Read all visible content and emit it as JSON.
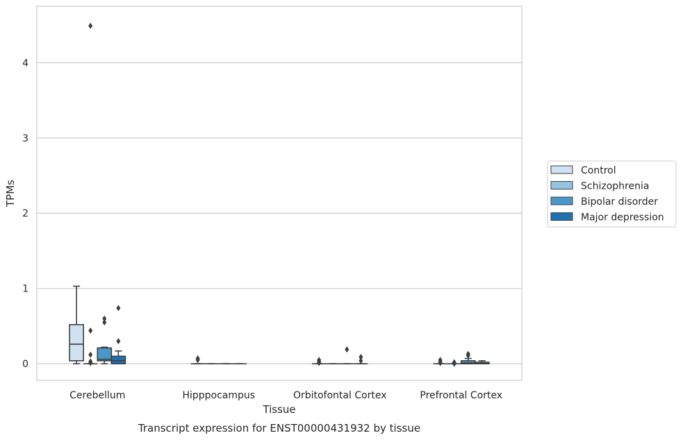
{
  "caption": "Transcript expression for ENST00000431932 by tissue",
  "chart_data": {
    "type": "box",
    "title": "",
    "xlabel": "Tissue",
    "ylabel": "TPMs",
    "ylim": [
      -0.22,
      4.75
    ],
    "yticks": [
      0,
      1,
      2,
      3,
      4
    ],
    "grid": "horizontal",
    "legend_position": "right",
    "categories": [
      "Cerebellum",
      "Hipppocampus",
      "Orbitofontal Cortex",
      "Prefrontal Cortex"
    ],
    "series": [
      {
        "name": "Control",
        "color": "#d0e1f2",
        "boxes": [
          {
            "whislo": 0.0,
            "q1": 0.04,
            "med": 0.26,
            "q3": 0.52,
            "whishi": 1.03,
            "fliers": []
          },
          {
            "whislo": 0.0,
            "q1": 0.0,
            "med": 0.0,
            "q3": 0.0,
            "whishi": 0.0,
            "fliers": [
              0.05,
              0.07
            ]
          },
          {
            "whislo": 0.0,
            "q1": 0.0,
            "med": 0.0,
            "q3": 0.0,
            "whishi": 0.0,
            "fliers": [
              0.01,
              0.03,
              0.05
            ]
          },
          {
            "whislo": 0.0,
            "q1": 0.0,
            "med": 0.0,
            "q3": 0.0,
            "whishi": 0.0,
            "fliers": [
              0.01,
              0.03,
              0.05
            ]
          }
        ]
      },
      {
        "name": "Schizophrenia",
        "color": "#94c4df",
        "boxes": [
          {
            "whislo": 0.0,
            "q1": 0.0,
            "med": 0.0,
            "q3": 0.0,
            "whishi": 0.0,
            "fliers": [
              0.01,
              0.03,
              0.12,
              0.44,
              4.49
            ]
          },
          {
            "whislo": 0.0,
            "q1": 0.0,
            "med": 0.0,
            "q3": 0.0,
            "whishi": 0.0,
            "fliers": []
          },
          {
            "whislo": 0.0,
            "q1": 0.0,
            "med": 0.0,
            "q3": 0.0,
            "whishi": 0.0,
            "fliers": []
          },
          {
            "whislo": 0.0,
            "q1": 0.0,
            "med": 0.0,
            "q3": 0.0,
            "whishi": 0.0,
            "fliers": [
              0.0,
              0.02
            ]
          }
        ]
      },
      {
        "name": "Bipolar disorder",
        "color": "#4a98c9",
        "boxes": [
          {
            "whislo": 0.0,
            "q1": 0.04,
            "med": 0.06,
            "q3": 0.21,
            "whishi": 0.22,
            "fliers": [
              0.55,
              0.6
            ]
          },
          {
            "whislo": 0.0,
            "q1": 0.0,
            "med": 0.0,
            "q3": 0.0,
            "whishi": 0.0,
            "fliers": []
          },
          {
            "whislo": 0.0,
            "q1": 0.0,
            "med": 0.0,
            "q3": 0.0,
            "whishi": 0.0,
            "fliers": [
              0.19
            ]
          },
          {
            "whislo": 0.0,
            "q1": 0.0,
            "med": 0.01,
            "q3": 0.04,
            "whishi": 0.07,
            "fliers": [
              0.11,
              0.13
            ]
          }
        ]
      },
      {
        "name": "Major depression",
        "color": "#2070b4",
        "boxes": [
          {
            "whislo": 0.0,
            "q1": 0.0,
            "med": 0.04,
            "q3": 0.1,
            "whishi": 0.17,
            "fliers": [
              0.3,
              0.74
            ]
          },
          {
            "whislo": 0.0,
            "q1": 0.0,
            "med": 0.0,
            "q3": 0.0,
            "whishi": 0.0,
            "fliers": []
          },
          {
            "whislo": 0.0,
            "q1": 0.0,
            "med": 0.0,
            "q3": 0.0,
            "whishi": 0.0,
            "fliers": [
              0.04,
              0.09
            ]
          },
          {
            "whislo": 0.0,
            "q1": 0.0,
            "med": 0.0,
            "q3": 0.02,
            "whishi": 0.04,
            "fliers": []
          }
        ]
      }
    ]
  }
}
